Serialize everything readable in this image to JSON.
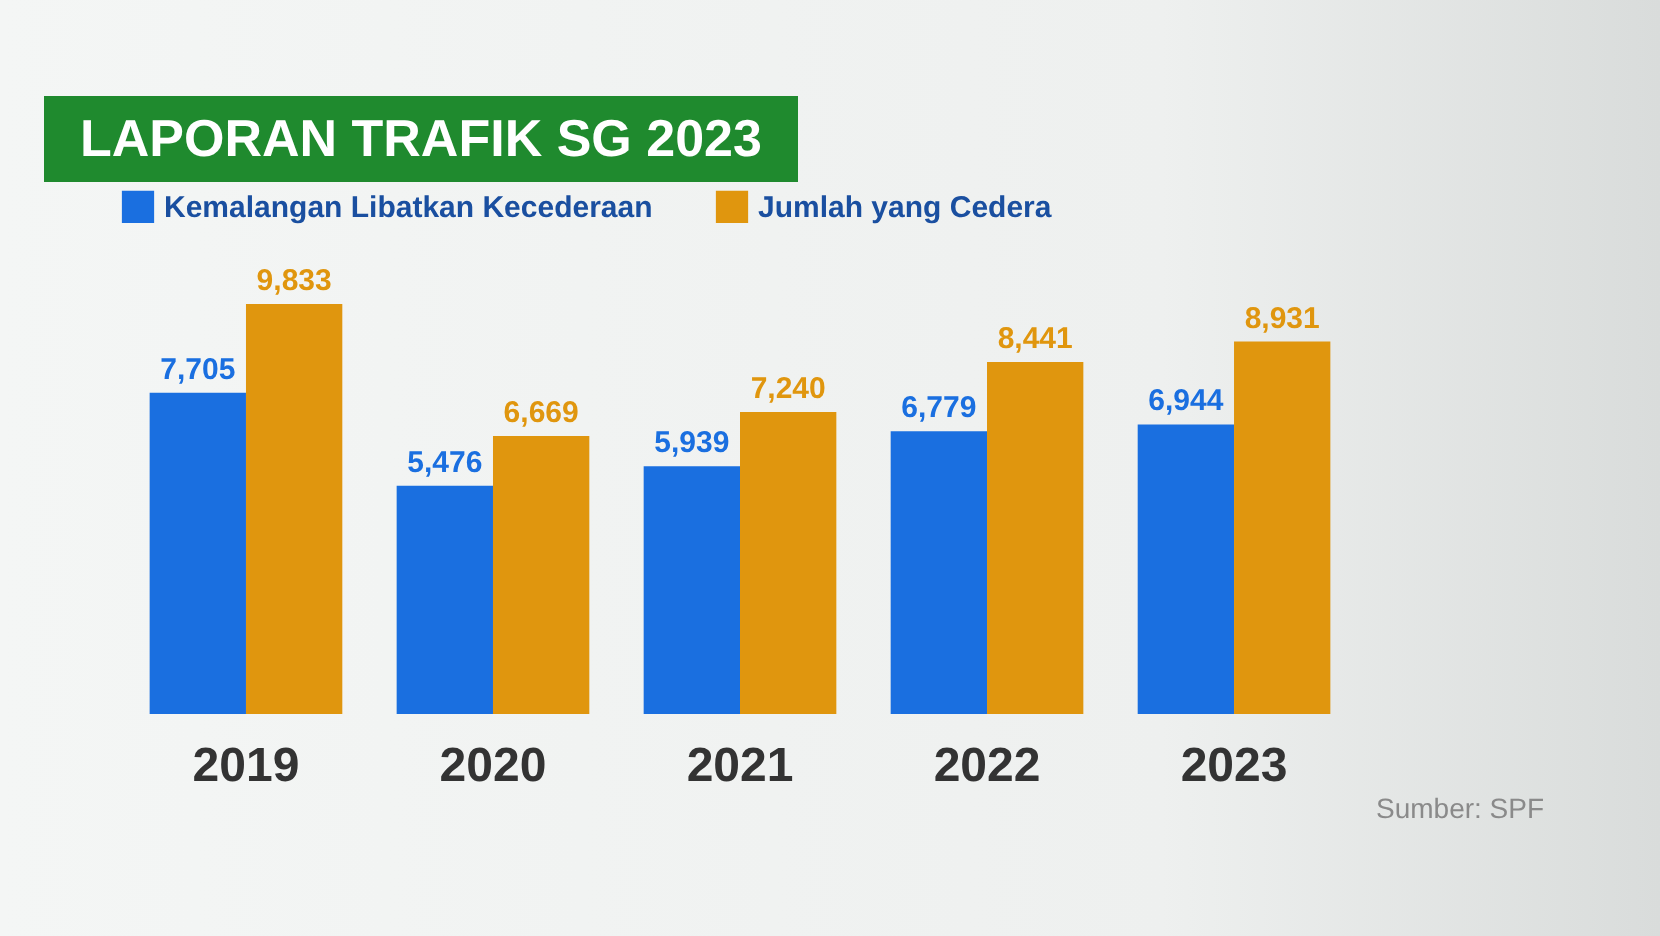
{
  "chart_data": {
    "type": "bar",
    "title": "LAPORAN TRAFIK SG 2023",
    "categories": [
      "2019",
      "2020",
      "2021",
      "2022",
      "2023"
    ],
    "series": [
      {
        "name": "Kemalangan Libatkan Kecederaan",
        "color": "#1a6fe0",
        "values": [
          7705,
          5476,
          5939,
          6779,
          6944
        ],
        "value_labels": [
          "7,705",
          "5,476",
          "5,939",
          "6,779",
          "6,944"
        ]
      },
      {
        "name": "Jumlah yang Cedera",
        "color": "#e0960e",
        "values": [
          9833,
          6669,
          7240,
          8441,
          8931
        ],
        "value_labels": [
          "9,833",
          "6,669",
          "7,240",
          "8,441",
          "8,931"
        ]
      }
    ],
    "legend": "top left",
    "annotations": [
      "Sumber: SPF"
    ]
  }
}
